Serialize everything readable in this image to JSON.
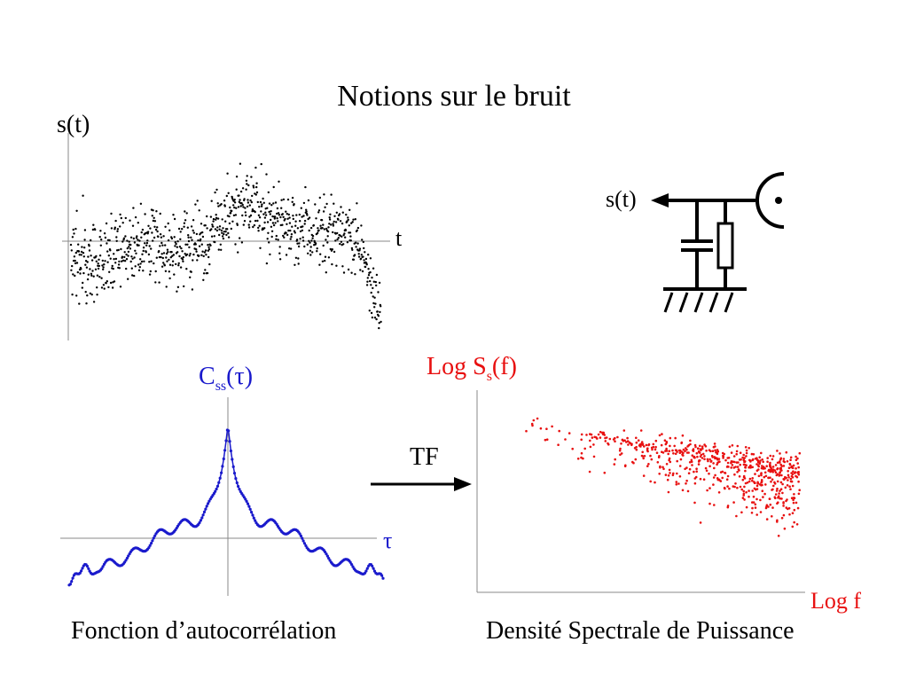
{
  "title": "Notions sur le bruit",
  "signal_plot": {
    "ylabel": "s(t)",
    "xlabel": "t"
  },
  "circuit": {
    "output_label": "s(t)"
  },
  "autocorrelation": {
    "ylabel_base": "C",
    "ylabel_sub": "ss",
    "ylabel_arg": "(τ)",
    "xlabel": "τ",
    "caption": "Fonction d’autocorrélation",
    "color": "#1a1acc"
  },
  "transform": {
    "label": "TF"
  },
  "psd": {
    "ylabel_base": "Log S",
    "ylabel_sub": "s",
    "ylabel_arg": "(f)",
    "xlabel": "Log f",
    "caption": "Densité Spectrale de Puissance",
    "color": "#e81010"
  }
}
